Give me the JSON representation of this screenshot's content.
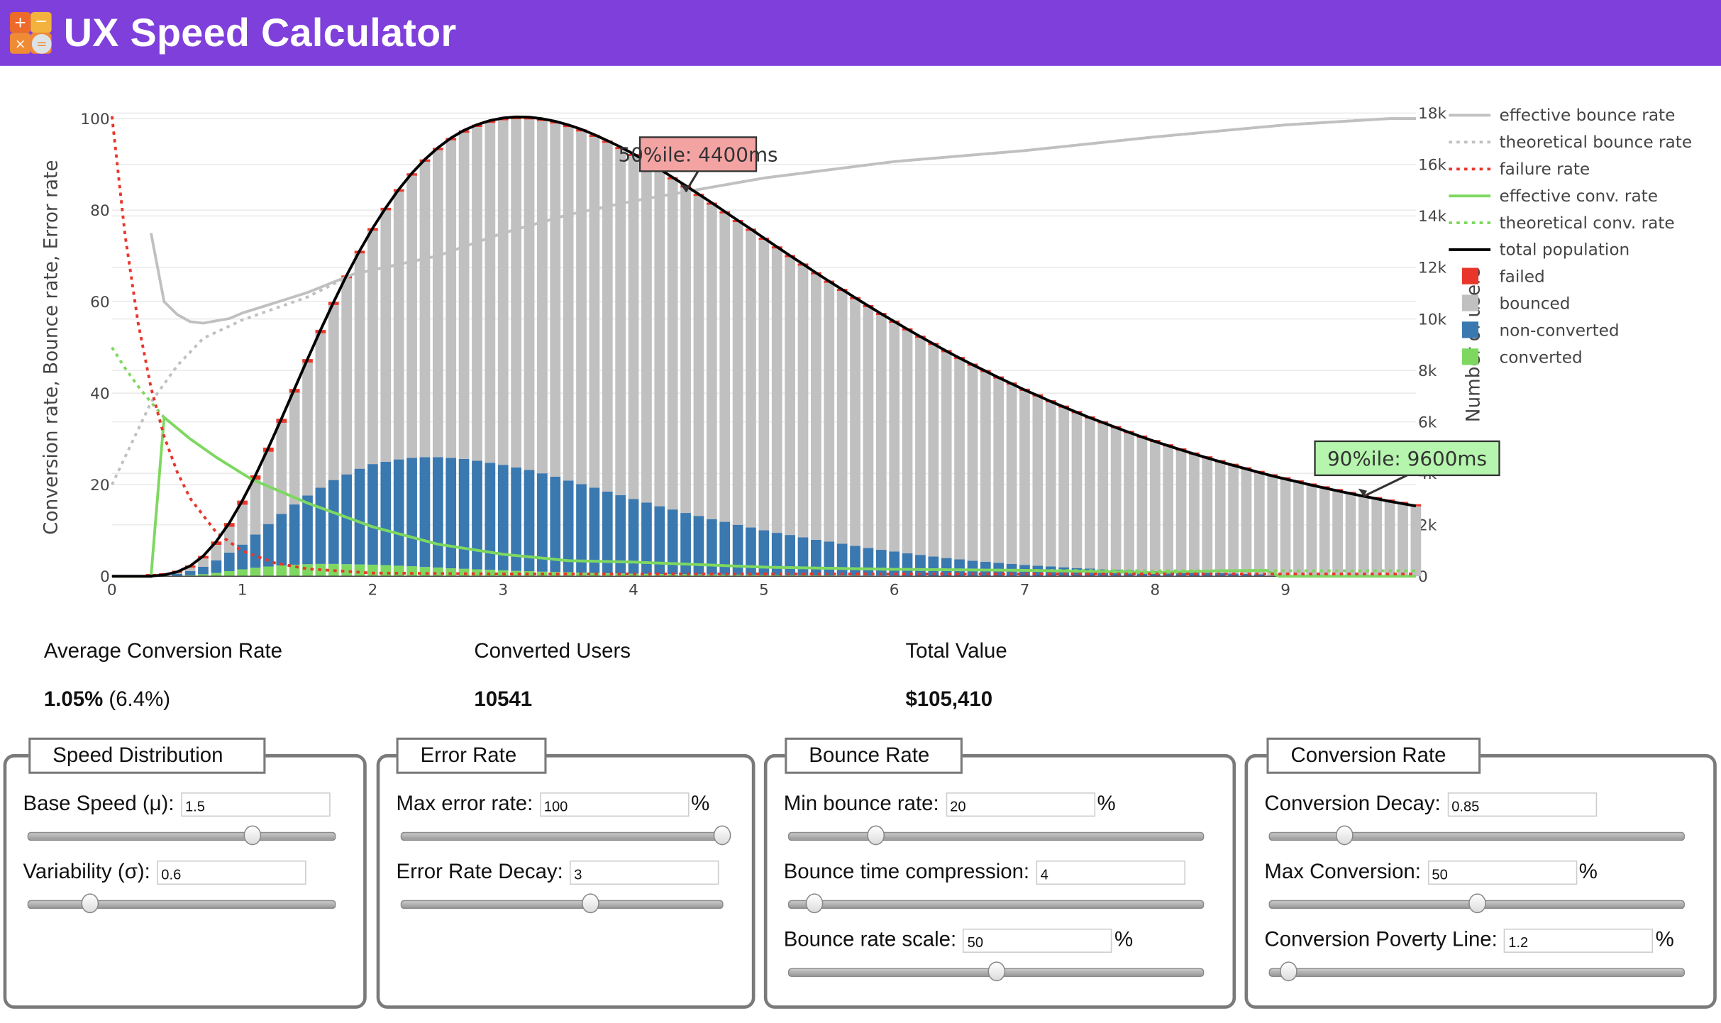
{
  "header": {
    "title": "UX Speed Calculator",
    "logo_icon": "calculator-icon"
  },
  "colors": {
    "header": "#7f3fdb",
    "failed": "#e8362a",
    "bounced": "#c0c0c0",
    "non_converted": "#3a78b0",
    "converted": "#7ed860",
    "total": "#000000",
    "annotation_50": "#f4a3a3",
    "annotation_90": "#b5f5ad"
  },
  "stats": [
    {
      "label": "Average Conversion Rate",
      "value": "1.05%",
      "sub": "(6.4%)"
    },
    {
      "label": "Converted Users",
      "value": "10541"
    },
    {
      "label": "Total Value",
      "value": "$105,410"
    }
  ],
  "panels": [
    {
      "title": "Speed Distribution",
      "rows": [
        {
          "label": "Base Speed (μ):",
          "value": "1.5",
          "unit": "",
          "slider_fraction": 0.73
        },
        {
          "label": "Variability (σ):",
          "value": "0.6",
          "unit": "",
          "slider_fraction": 0.2
        }
      ]
    },
    {
      "title": "Error Rate",
      "rows": [
        {
          "label": "Max error rate:",
          "value": "100",
          "unit": "%",
          "slider_fraction": 1.0
        },
        {
          "label": "Error Rate Decay:",
          "value": "3",
          "unit": "",
          "slider_fraction": 0.59
        }
      ]
    },
    {
      "title": "Bounce Rate",
      "rows": [
        {
          "label": "Min bounce rate:",
          "value": "20",
          "unit": "%",
          "slider_fraction": 0.21
        },
        {
          "label": "Bounce time compression:",
          "value": "4",
          "unit": "",
          "slider_fraction": 0.06
        },
        {
          "label": "Bounce rate scale:",
          "value": "50",
          "unit": "%",
          "slider_fraction": 0.5
        }
      ]
    },
    {
      "title": "Conversion Rate",
      "rows": [
        {
          "label": "Conversion Decay:",
          "value": "0.85",
          "unit": "",
          "slider_fraction": 0.18
        },
        {
          "label": "Max Conversion:",
          "value": "50",
          "unit": "%",
          "slider_fraction": 0.5
        },
        {
          "label": "Conversion Poverty Line:",
          "value": "1.2",
          "unit": "%",
          "slider_fraction": 0.045
        }
      ]
    }
  ],
  "chart_data": {
    "type": "bar+line",
    "ylabel": "Conversion rate, Bounce rate, Error rate",
    "y2label": "Number of users",
    "ylim": [
      0,
      100
    ],
    "y2lim": [
      0,
      18000
    ],
    "xlim": [
      0,
      10
    ],
    "grid": true,
    "legend_position": "right",
    "x_ticks": [
      "0",
      "1",
      "2",
      "3",
      "4",
      "5",
      "6",
      "7",
      "8",
      "9"
    ],
    "y_ticks": [
      "0",
      "20",
      "40",
      "60",
      "80",
      "100"
    ],
    "y2_ticks": [
      "0",
      "2k",
      "4k",
      "6k",
      "8k",
      "10k",
      "12k",
      "14k",
      "16k",
      "18k"
    ],
    "legend": [
      {
        "name": "effective bounce rate",
        "kind": "line",
        "color": "#c0c0c0",
        "dash": false
      },
      {
        "name": "theoretical bounce rate",
        "kind": "line",
        "color": "#c0c0c0",
        "dash": true
      },
      {
        "name": "failure rate",
        "kind": "line",
        "color": "#e8362a",
        "dash": true
      },
      {
        "name": "effective conv. rate",
        "kind": "line",
        "color": "#7ed860",
        "dash": false
      },
      {
        "name": "theoretical conv. rate",
        "kind": "line",
        "color": "#7ed860",
        "dash": true
      },
      {
        "name": "total population",
        "kind": "line",
        "color": "#000000",
        "dash": false
      },
      {
        "name": "failed",
        "kind": "bar",
        "color": "#e8362a"
      },
      {
        "name": "bounced",
        "kind": "bar",
        "color": "#c0c0c0"
      },
      {
        "name": "non-converted",
        "kind": "bar",
        "color": "#3a78b0"
      },
      {
        "name": "converted",
        "kind": "bar",
        "color": "#7ed860"
      }
    ],
    "bars_unit": "thousand users",
    "bar_step": 0.1,
    "total": [
      0,
      0,
      0.01,
      0.05,
      0.17,
      0.4,
      0.79,
      1.35,
      2.07,
      2.94,
      3.92,
      5.0,
      6.12,
      7.28,
      8.44,
      9.57,
      10.66,
      11.69,
      12.65,
      13.53,
      14.32,
      15.04,
      15.66,
      16.2,
      16.65,
      17.03,
      17.33,
      17.55,
      17.71,
      17.81,
      17.85,
      17.84,
      17.78,
      17.68,
      17.54,
      17.37,
      17.16,
      16.93,
      16.68,
      16.41,
      16.12,
      15.82,
      15.5,
      15.18,
      14.85,
      14.51,
      14.17,
      13.83,
      13.49,
      13.14,
      12.8,
      12.46,
      12.13,
      11.79,
      11.46,
      11.14,
      10.82,
      10.51,
      10.2,
      9.9,
      9.6,
      9.31,
      9.03,
      8.75,
      8.48,
      8.22,
      7.97,
      7.72,
      7.48,
      7.24,
      7.02,
      6.79,
      6.58,
      6.37,
      6.16,
      5.97,
      5.78,
      5.59,
      5.41,
      5.24,
      5.07,
      4.91,
      4.75,
      4.6,
      4.45,
      4.31,
      4.17,
      4.03,
      3.9,
      3.78,
      3.66,
      3.54,
      3.43,
      3.32,
      3.21,
      3.11,
      3.01,
      2.91,
      2.82,
      2.73
    ],
    "failed": [
      0,
      0,
      0.004,
      0.015,
      0.039,
      0.068,
      0.101,
      0.129,
      0.149,
      0.161,
      0.164,
      0.162,
      0.155,
      0.145,
      0.136,
      0.127,
      0.118,
      0.112,
      0.105,
      0.102,
      0.098,
      0.096,
      0.094,
      0.093,
      0.092,
      0.092,
      0.092,
      0.092,
      0.092,
      0.091,
      0.089,
      0.089,
      0.089,
      0.088,
      0.088,
      0.087,
      0.086,
      0.085,
      0.083,
      0.082,
      0.081,
      0.079,
      0.078,
      0.076,
      0.074,
      0.073,
      0.071,
      0.069,
      0.067,
      0.066,
      0.064,
      0.062,
      0.061,
      0.059,
      0.057,
      0.056,
      0.054,
      0.053,
      0.051,
      0.05,
      0.048,
      0.047,
      0.045,
      0.044,
      0.042,
      0.041,
      0.04,
      0.039,
      0.037,
      0.036,
      0.035,
      0.034,
      0.033,
      0.032,
      0.031,
      0.03,
      0.029,
      0.028,
      0.027,
      0.026,
      0.025,
      0.025,
      0.024,
      0.023,
      0.022,
      0.022,
      0.021,
      0.02,
      0.02,
      0.019,
      0.018,
      0.018,
      0.017,
      0.017,
      0.016,
      0.016,
      0.015,
      0.015,
      0.014,
      0.014
    ],
    "non_converted": [
      0,
      0,
      0,
      0.02,
      0.08,
      0.16,
      0.29,
      0.49,
      0.72,
      0.96,
      1.29,
      1.65,
      2.0,
      2.34,
      2.67,
      2.96,
      3.26,
      3.49,
      3.72,
      3.91,
      4.02,
      4.13,
      4.21,
      4.27,
      4.29,
      4.29,
      4.27,
      4.22,
      4.16,
      4.1,
      4.02,
      3.93,
      3.82,
      3.7,
      3.56,
      3.44,
      3.31,
      3.17,
      3.04,
      2.9,
      2.77,
      2.63,
      2.51,
      2.38,
      2.27,
      2.15,
      2.05,
      1.94,
      1.84,
      1.74,
      1.64,
      1.56,
      1.47,
      1.38,
      1.31,
      1.23,
      1.15,
      1.07,
      1.0,
      0.94,
      0.87,
      0.81,
      0.75,
      0.69,
      0.64,
      0.59,
      0.55,
      0.51,
      0.47,
      0.43,
      0.4,
      0.37,
      0.34,
      0.31,
      0.29,
      0.26,
      0.24,
      0.22,
      0.2,
      0.2,
      0.18,
      0.16,
      0.15,
      0.13,
      0.12,
      0.1,
      0.09,
      0.08,
      0.02,
      0,
      0,
      0,
      0,
      0,
      0,
      0,
      0,
      0,
      0,
      0
    ],
    "converted": [
      0,
      0,
      0,
      0,
      0.02,
      0.04,
      0.08,
      0.13,
      0.2,
      0.27,
      0.33,
      0.38,
      0.42,
      0.45,
      0.47,
      0.48,
      0.48,
      0.47,
      0.46,
      0.45,
      0.43,
      0.41,
      0.39,
      0.36,
      0.34,
      0.31,
      0.29,
      0.27,
      0.25,
      0.23,
      0.21,
      0.2,
      0.18,
      0.17,
      0.16,
      0.14,
      0.13,
      0.12,
      0.11,
      0.1,
      0.095,
      0.09,
      0.085,
      0.08,
      0.075,
      0.07,
      0.065,
      0.06,
      0.055,
      0.05,
      0.047,
      0.044,
      0.041,
      0.038,
      0.035,
      0.033,
      0.031,
      0.029,
      0.027,
      0.025,
      0.023,
      0.021,
      0.02,
      0.018,
      0.017,
      0.016,
      0.015,
      0.014,
      0.013,
      0.012,
      0.011,
      0.01,
      0.009,
      0.009,
      0.008,
      0.007,
      0.007,
      0.006,
      0.006,
      0.005,
      0.005,
      0.004,
      0.004,
      0.003,
      0.003,
      0.003,
      0.002,
      0.002,
      0.001,
      0,
      0,
      0,
      0,
      0,
      0,
      0,
      0,
      0,
      0,
      0
    ],
    "lines": {
      "effective_bounce_rate": [
        [
          0.3,
          75
        ],
        [
          0.4,
          60
        ],
        [
          0.5,
          57.2
        ],
        [
          0.6,
          55.6
        ],
        [
          0.7,
          55.3
        ],
        [
          0.8,
          55.8
        ],
        [
          0.9,
          56.3
        ],
        [
          1.0,
          57.5
        ],
        [
          1.5,
          62
        ],
        [
          1.85,
          66
        ],
        [
          2.5,
          70
        ],
        [
          3,
          75
        ],
        [
          3.5,
          79
        ],
        [
          4,
          82
        ],
        [
          4.4,
          84
        ],
        [
          5,
          87
        ],
        [
          6,
          90.6
        ],
        [
          7,
          93
        ],
        [
          8,
          96
        ],
        [
          9,
          98.6
        ],
        [
          9.8,
          100
        ],
        [
          10,
          100
        ]
      ],
      "theoretical_bounce_rate": [
        [
          0,
          20
        ],
        [
          0.3,
          38
        ],
        [
          0.5,
          46
        ],
        [
          0.7,
          52
        ],
        [
          1.0,
          56
        ],
        [
          1.5,
          61
        ],
        [
          1.85,
          66
        ],
        [
          2.5,
          70
        ],
        [
          3,
          75
        ],
        [
          3.5,
          79
        ],
        [
          4,
          82
        ],
        [
          4.4,
          84
        ],
        [
          5,
          87
        ],
        [
          6,
          90.6
        ],
        [
          7,
          93
        ],
        [
          8,
          96
        ],
        [
          9,
          98.6
        ],
        [
          9.8,
          100
        ],
        [
          10,
          100
        ]
      ],
      "failure_rate": [
        [
          0,
          100.5
        ],
        [
          0.1,
          74.6
        ],
        [
          0.2,
          55.4
        ],
        [
          0.3,
          41.2
        ],
        [
          0.4,
          30.6
        ],
        [
          0.5,
          22.8
        ],
        [
          0.6,
          17
        ],
        [
          0.8,
          9.6
        ],
        [
          1,
          5.5
        ],
        [
          1.25,
          2.9
        ],
        [
          1.5,
          1.6
        ],
        [
          2,
          0.7
        ],
        [
          3,
          0.5
        ],
        [
          4,
          0.5
        ],
        [
          6,
          0.5
        ],
        [
          8,
          0.5
        ],
        [
          10,
          0.5
        ]
      ],
      "effective_conv_rate": [
        [
          0,
          0
        ],
        [
          0.3,
          0
        ],
        [
          0.4,
          34.7
        ],
        [
          0.6,
          30
        ],
        [
          0.8,
          26
        ],
        [
          1.07,
          21.2
        ],
        [
          1.5,
          16
        ],
        [
          2,
          10.8
        ],
        [
          2.5,
          7
        ],
        [
          3,
          4.8
        ],
        [
          3.5,
          3.4
        ],
        [
          4,
          3.1
        ],
        [
          5,
          2
        ],
        [
          6,
          1.5
        ],
        [
          7,
          1.3
        ],
        [
          8,
          0.8
        ],
        [
          8.5,
          1.2
        ],
        [
          8.85,
          1.3
        ],
        [
          8.95,
          0
        ],
        [
          10,
          0
        ]
      ],
      "theoretical_conv_rate": [
        [
          0,
          50
        ],
        [
          0.1,
          45.5
        ],
        [
          0.2,
          41.5
        ],
        [
          0.3,
          38
        ],
        [
          0.4,
          34.7
        ],
        [
          0.6,
          30
        ],
        [
          0.8,
          26
        ],
        [
          1.07,
          21.2
        ],
        [
          1.5,
          16
        ],
        [
          2,
          10.8
        ],
        [
          2.5,
          7
        ],
        [
          3,
          4.8
        ],
        [
          3.5,
          3.4
        ],
        [
          4,
          3.1
        ],
        [
          5,
          2
        ],
        [
          6,
          1.5
        ],
        [
          7,
          1.3
        ],
        [
          8,
          1.2
        ],
        [
          10,
          1.2
        ]
      ]
    },
    "annotations": [
      {
        "text": "50%ile: 4400ms",
        "x": 4.4,
        "y_pct": 84
      },
      {
        "text": "90%ile:  9600ms",
        "x": 9.6,
        "y_users": 3110
      }
    ]
  }
}
